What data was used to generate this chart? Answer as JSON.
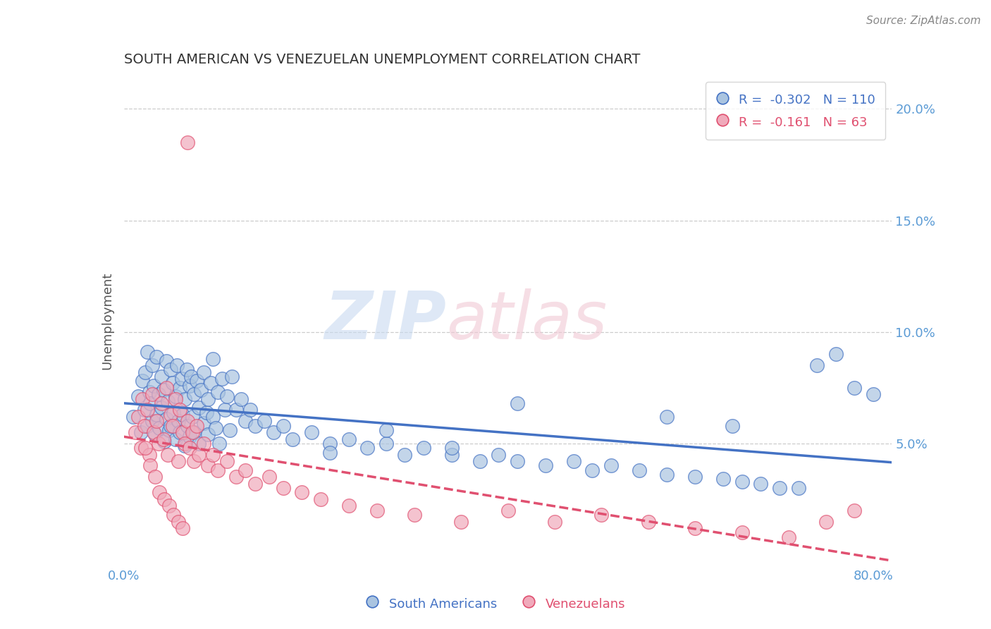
{
  "title": "SOUTH AMERICAN VS VENEZUELAN UNEMPLOYMENT CORRELATION CHART",
  "source": "Source: ZipAtlas.com",
  "ylabel": "Unemployment",
  "xlim": [
    0.0,
    0.82
  ],
  "ylim": [
    -0.005,
    0.215
  ],
  "sa_color": "#aac4e0",
  "ven_color": "#f0aabb",
  "sa_line_color": "#4472c4",
  "ven_line_color": "#e05070",
  "sa_R": -0.302,
  "sa_N": 110,
  "ven_R": -0.161,
  "ven_N": 63,
  "legend_label_sa": "South Americans",
  "legend_label_ven": "Venezuelans",
  "watermark_zip": "ZIP",
  "watermark_atlas": "atlas",
  "sa_scatter_x": [
    0.01,
    0.015,
    0.018,
    0.02,
    0.022,
    0.023,
    0.025,
    0.025,
    0.027,
    0.028,
    0.03,
    0.03,
    0.032,
    0.033,
    0.035,
    0.035,
    0.037,
    0.038,
    0.04,
    0.04,
    0.042,
    0.043,
    0.045,
    0.045,
    0.047,
    0.048,
    0.05,
    0.05,
    0.052,
    0.053,
    0.055,
    0.055,
    0.057,
    0.058,
    0.06,
    0.06,
    0.062,
    0.063,
    0.065,
    0.065,
    0.067,
    0.068,
    0.07,
    0.07,
    0.072,
    0.073,
    0.075,
    0.075,
    0.078,
    0.08,
    0.08,
    0.082,
    0.085,
    0.085,
    0.088,
    0.09,
    0.09,
    0.093,
    0.095,
    0.095,
    0.098,
    0.1,
    0.102,
    0.105,
    0.108,
    0.11,
    0.113,
    0.115,
    0.12,
    0.125,
    0.13,
    0.135,
    0.14,
    0.15,
    0.16,
    0.17,
    0.18,
    0.2,
    0.22,
    0.24,
    0.26,
    0.28,
    0.3,
    0.32,
    0.35,
    0.38,
    0.4,
    0.42,
    0.45,
    0.48,
    0.5,
    0.52,
    0.55,
    0.58,
    0.61,
    0.64,
    0.66,
    0.68,
    0.7,
    0.72,
    0.74,
    0.76,
    0.78,
    0.8,
    0.65,
    0.58,
    0.42,
    0.35,
    0.28,
    0.22
  ],
  "sa_scatter_y": [
    0.062,
    0.071,
    0.055,
    0.078,
    0.065,
    0.082,
    0.058,
    0.091,
    0.073,
    0.068,
    0.085,
    0.06,
    0.076,
    0.054,
    0.089,
    0.063,
    0.072,
    0.057,
    0.08,
    0.066,
    0.074,
    0.051,
    0.087,
    0.061,
    0.069,
    0.056,
    0.083,
    0.058,
    0.077,
    0.064,
    0.071,
    0.052,
    0.085,
    0.06,
    0.075,
    0.055,
    0.079,
    0.063,
    0.07,
    0.049,
    0.083,
    0.058,
    0.076,
    0.053,
    0.08,
    0.062,
    0.072,
    0.055,
    0.078,
    0.066,
    0.05,
    0.074,
    0.059,
    0.082,
    0.064,
    0.07,
    0.054,
    0.077,
    0.062,
    0.088,
    0.057,
    0.073,
    0.05,
    0.079,
    0.065,
    0.071,
    0.056,
    0.08,
    0.065,
    0.07,
    0.06,
    0.065,
    0.058,
    0.06,
    0.055,
    0.058,
    0.052,
    0.055,
    0.05,
    0.052,
    0.048,
    0.05,
    0.045,
    0.048,
    0.045,
    0.042,
    0.045,
    0.042,
    0.04,
    0.042,
    0.038,
    0.04,
    0.038,
    0.036,
    0.035,
    0.034,
    0.033,
    0.032,
    0.03,
    0.03,
    0.085,
    0.09,
    0.075,
    0.072,
    0.058,
    0.062,
    0.068,
    0.048,
    0.056,
    0.046
  ],
  "ven_scatter_x": [
    0.012,
    0.015,
    0.018,
    0.02,
    0.022,
    0.025,
    0.027,
    0.03,
    0.032,
    0.035,
    0.037,
    0.04,
    0.042,
    0.045,
    0.047,
    0.05,
    0.052,
    0.055,
    0.058,
    0.06,
    0.063,
    0.065,
    0.068,
    0.07,
    0.073,
    0.075,
    0.078,
    0.08,
    0.085,
    0.09,
    0.095,
    0.1,
    0.11,
    0.12,
    0.13,
    0.14,
    0.155,
    0.17,
    0.19,
    0.21,
    0.24,
    0.27,
    0.31,
    0.36,
    0.41,
    0.46,
    0.51,
    0.56,
    0.61,
    0.66,
    0.71,
    0.75,
    0.78,
    0.023,
    0.028,
    0.033,
    0.038,
    0.043,
    0.048,
    0.053,
    0.058,
    0.063,
    0.068
  ],
  "ven_scatter_y": [
    0.055,
    0.062,
    0.048,
    0.07,
    0.058,
    0.065,
    0.045,
    0.072,
    0.055,
    0.06,
    0.05,
    0.068,
    0.052,
    0.075,
    0.045,
    0.063,
    0.058,
    0.07,
    0.042,
    0.065,
    0.055,
    0.05,
    0.06,
    0.048,
    0.055,
    0.042,
    0.058,
    0.045,
    0.05,
    0.04,
    0.045,
    0.038,
    0.042,
    0.035,
    0.038,
    0.032,
    0.035,
    0.03,
    0.028,
    0.025,
    0.022,
    0.02,
    0.018,
    0.015,
    0.02,
    0.015,
    0.018,
    0.015,
    0.012,
    0.01,
    0.008,
    0.015,
    0.02,
    0.048,
    0.04,
    0.035,
    0.028,
    0.025,
    0.022,
    0.018,
    0.015,
    0.012,
    0.185
  ]
}
